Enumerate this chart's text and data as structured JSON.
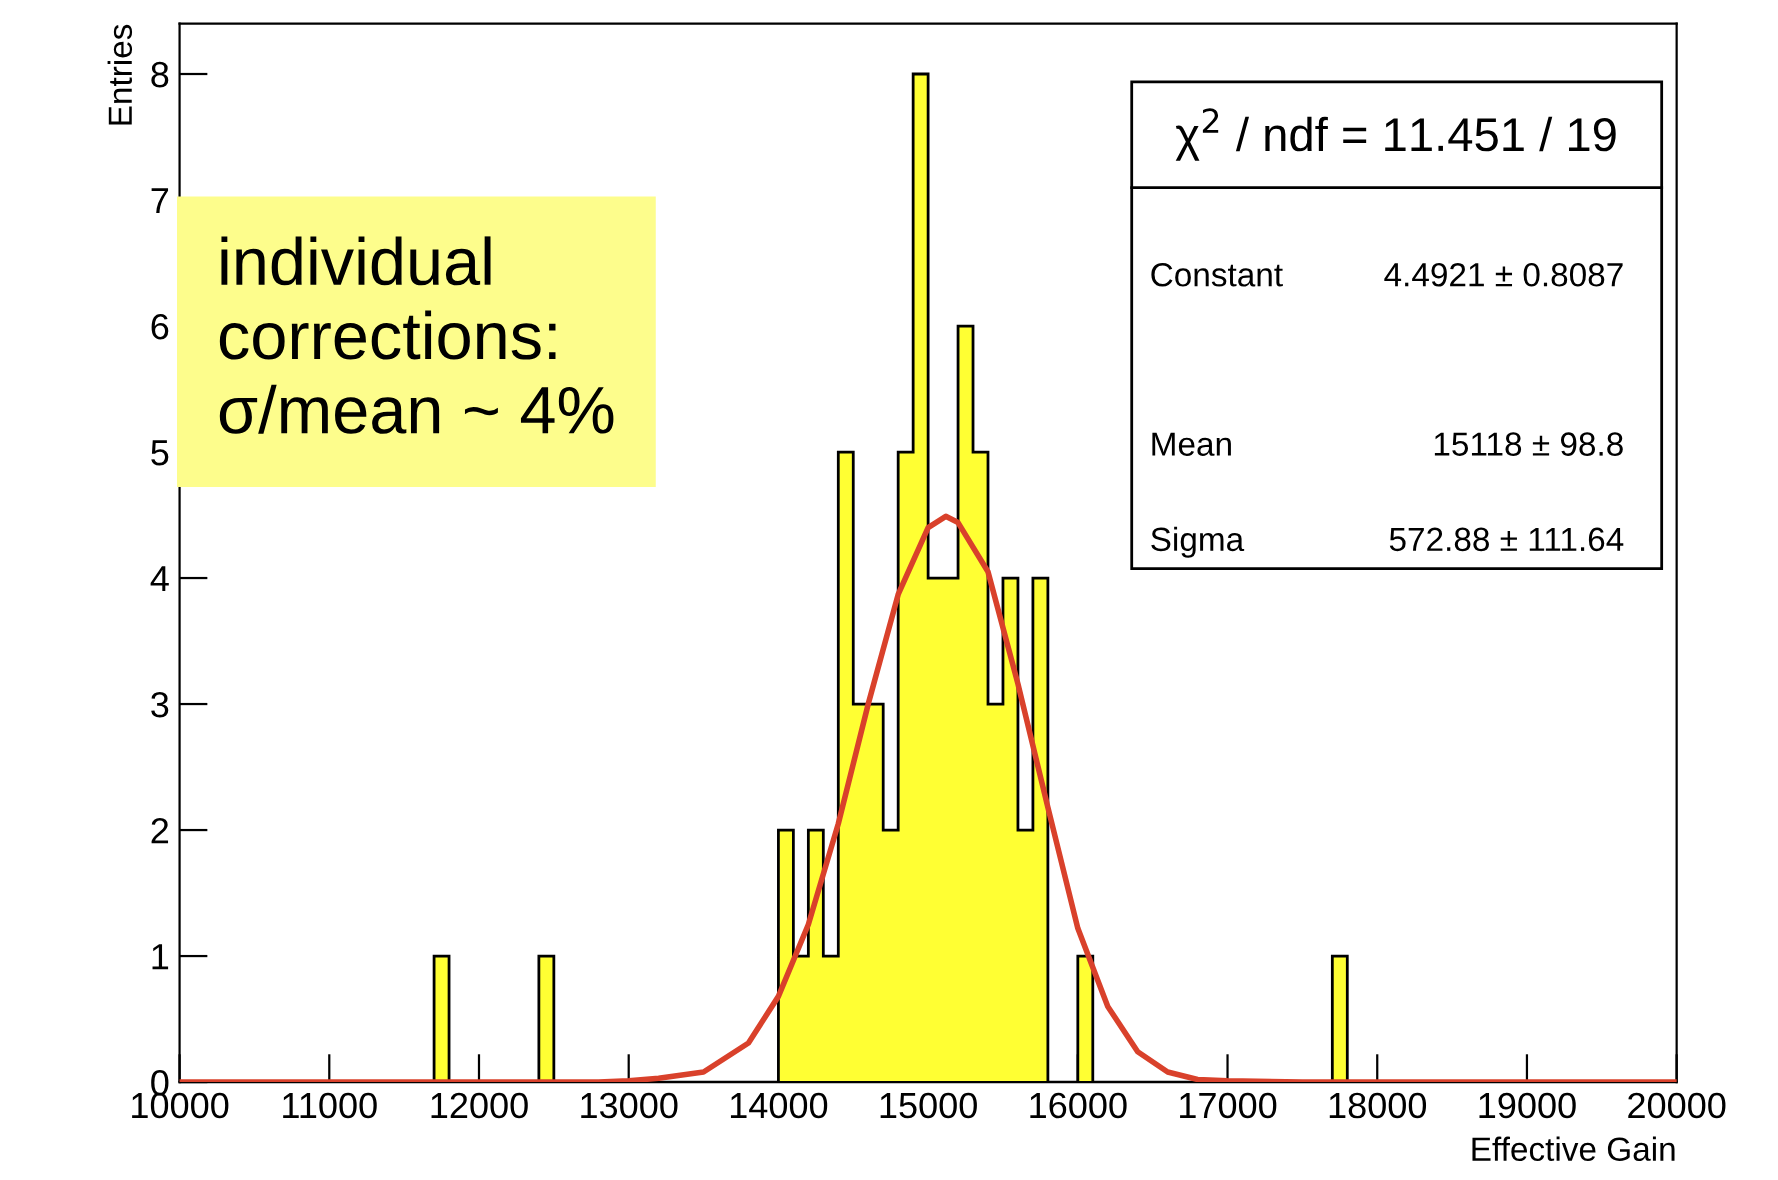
{
  "chart_data": {
    "type": "histogram",
    "xlabel": "Effective Gain",
    "ylabel": "Entries",
    "bins": [
      10000,
      10100,
      10200,
      10300,
      10400,
      10500,
      10600,
      10700,
      10800,
      10900,
      11000,
      11100,
      11200,
      11300,
      11400,
      11500,
      11600,
      11700,
      11800,
      11900,
      12000,
      12100,
      12200,
      12300,
      12400,
      12500,
      12600,
      12700,
      12800,
      12900,
      13000,
      13100,
      13200,
      13300,
      13400,
      13500,
      13600,
      13700,
      13800,
      13900,
      14000,
      14100,
      14200,
      14300,
      14400,
      14500,
      14600,
      14700,
      14800,
      14900,
      15000,
      15100,
      15200,
      15300,
      15400,
      15500,
      15600,
      15700,
      15800,
      15900,
      16000,
      16100,
      16200,
      16300,
      16400,
      16500,
      16600,
      16700,
      16800,
      16900,
      17000,
      17100,
      17200,
      17300,
      17400,
      17500,
      17600,
      17700,
      17800,
      17900,
      18000,
      18100,
      18200,
      18300,
      18400,
      18500,
      18600,
      18700,
      18800,
      18900,
      19000,
      19100,
      19200,
      19300,
      19400,
      19500,
      19600,
      19700,
      19800,
      19900,
      20000
    ],
    "values": [
      0,
      0,
      0,
      0,
      0,
      0,
      0,
      0,
      0,
      0,
      0,
      0,
      0,
      0,
      0,
      0,
      0,
      1,
      0,
      0,
      0,
      0,
      0,
      0,
      1,
      0,
      0,
      0,
      0,
      0,
      0,
      0,
      0,
      0,
      0,
      0,
      0,
      0,
      0,
      0,
      2,
      1,
      2,
      1,
      5,
      3,
      3,
      2,
      5,
      8,
      4,
      4,
      6,
      5,
      3,
      4,
      2,
      4,
      0,
      0,
      1,
      0,
      0,
      0,
      0,
      0,
      0,
      0,
      0,
      0,
      0,
      0,
      0,
      0,
      0,
      0,
      0,
      1,
      0,
      0,
      0,
      0,
      0,
      0,
      0,
      0,
      0,
      0,
      0,
      0,
      0,
      0,
      0,
      0,
      0,
      0,
      0,
      0,
      0,
      0
    ],
    "color": "#ffff33",
    "series": [
      {
        "type": "line",
        "color": "#d9412b",
        "x": [
          10000,
          12500,
          12800,
          13000,
          13200,
          13500,
          13800,
          14000,
          14200,
          14400,
          14600,
          14800,
          15000,
          15118,
          15200,
          15400,
          15600,
          15800,
          16000,
          16200,
          16400,
          16600,
          16800,
          17000,
          17500,
          20000
        ],
        "values": [
          0,
          0,
          0,
          0.01,
          0.03,
          0.08,
          0.31,
          0.68,
          1.25,
          2.05,
          3.0,
          3.87,
          4.4,
          4.49,
          4.44,
          4.05,
          3.16,
          2.18,
          1.22,
          0.6,
          0.24,
          0.08,
          0.02,
          0.01,
          0,
          0
        ]
      }
    ],
    "xlim": [
      10000,
      20000
    ],
    "xticks": [
      10000,
      11000,
      12000,
      13000,
      14000,
      15000,
      16000,
      17000,
      18000,
      19000,
      20000
    ],
    "ylim": [
      0,
      8.4
    ],
    "yticks": [
      0,
      1,
      2,
      3,
      4,
      5,
      6,
      7,
      8
    ],
    "grid": false,
    "annotations": [
      "individual\ncorrections:\nσ/mean ~ 4%",
      "χ$^{2}$ / ndf = 11.451 / 19",
      "Constant",
      "4.4921 ± 0.8087",
      "Mean",
      "15118 ± 98.8",
      "Sigma",
      "572.88 ± 111.64"
    ]
  }
}
